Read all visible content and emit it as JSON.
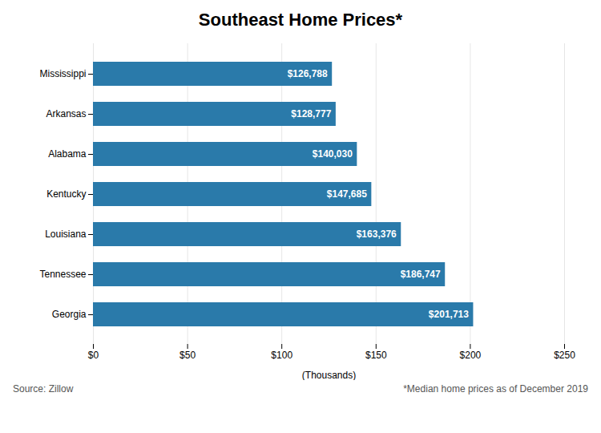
{
  "chart_data": {
    "type": "bar",
    "orientation": "horizontal",
    "title": "Southeast Home Prices*",
    "categories": [
      "Mississippi",
      "Arkansas",
      "Alabama",
      "Kentucky",
      "Louisiana",
      "Tennessee",
      "Georgia"
    ],
    "values": [
      126788,
      128777,
      140030,
      147685,
      163376,
      186747,
      201713
    ],
    "value_labels": [
      "$126,788",
      "$128,777",
      "$140,030",
      "$147,685",
      "$163,376",
      "$186,747",
      "$201,713"
    ],
    "data_labels": true,
    "color": "#2a7aaa",
    "xlabel": "(Thousands)",
    "xlim": [
      0,
      250000
    ],
    "xticks": [
      {
        "value": 0,
        "label": "$0"
      },
      {
        "value": 50000,
        "label": "$50"
      },
      {
        "value": 100000,
        "label": "$100"
      },
      {
        "value": 150000,
        "label": "$150"
      },
      {
        "value": 200000,
        "label": "$200"
      },
      {
        "value": 250000,
        "label": "$250"
      }
    ],
    "grid": true,
    "source": "Source: Zillow",
    "footnote": "*Median home prices as of December 2019"
  }
}
